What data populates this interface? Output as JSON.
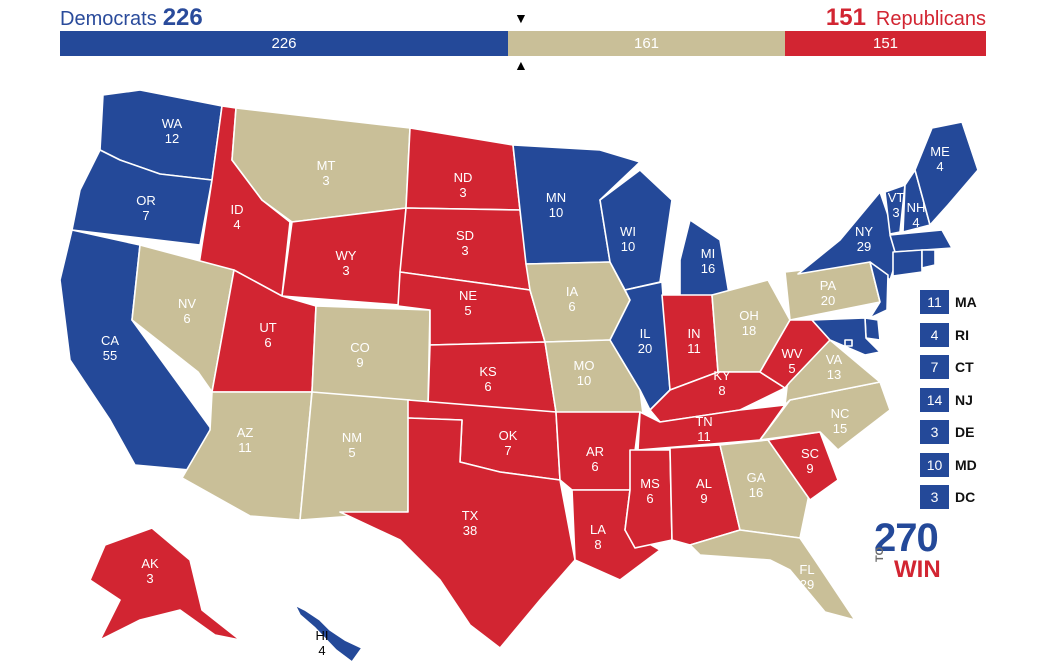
{
  "header": {
    "dem_name": "Democrats",
    "dem_total": "226",
    "rep_total": "151",
    "rep_name": "Republicans",
    "bar": {
      "dem": "226",
      "tossup": "161",
      "rep": "151"
    },
    "marker_down": "▼",
    "marker_up": "▲"
  },
  "colors": {
    "dem": "#244999",
    "rep": "#d22532",
    "tossup": "#c9bf98"
  },
  "states": [
    {
      "id": "WA",
      "abbr": "WA",
      "votes": "12",
      "party": "D"
    },
    {
      "id": "OR",
      "abbr": "OR",
      "votes": "7",
      "party": "D"
    },
    {
      "id": "CA",
      "abbr": "CA",
      "votes": "55",
      "party": "D"
    },
    {
      "id": "ID",
      "abbr": "ID",
      "votes": "4",
      "party": "R"
    },
    {
      "id": "NV",
      "abbr": "NV",
      "votes": "6",
      "party": "T"
    },
    {
      "id": "MT",
      "abbr": "MT",
      "votes": "3",
      "party": "T"
    },
    {
      "id": "WY",
      "abbr": "WY",
      "votes": "3",
      "party": "R"
    },
    {
      "id": "UT",
      "abbr": "UT",
      "votes": "6",
      "party": "R"
    },
    {
      "id": "AZ",
      "abbr": "AZ",
      "votes": "11",
      "party": "T"
    },
    {
      "id": "CO",
      "abbr": "CO",
      "votes": "9",
      "party": "T"
    },
    {
      "id": "NM",
      "abbr": "NM",
      "votes": "5",
      "party": "T"
    },
    {
      "id": "ND",
      "abbr": "ND",
      "votes": "3",
      "party": "R"
    },
    {
      "id": "SD",
      "abbr": "SD",
      "votes": "3",
      "party": "R"
    },
    {
      "id": "NE",
      "abbr": "NE",
      "votes": "5",
      "party": "R"
    },
    {
      "id": "KS",
      "abbr": "KS",
      "votes": "6",
      "party": "R"
    },
    {
      "id": "OK",
      "abbr": "OK",
      "votes": "7",
      "party": "R"
    },
    {
      "id": "TX",
      "abbr": "TX",
      "votes": "38",
      "party": "R"
    },
    {
      "id": "MN",
      "abbr": "MN",
      "votes": "10",
      "party": "D"
    },
    {
      "id": "IA",
      "abbr": "IA",
      "votes": "6",
      "party": "T"
    },
    {
      "id": "MO",
      "abbr": "MO",
      "votes": "10",
      "party": "T"
    },
    {
      "id": "AR",
      "abbr": "AR",
      "votes": "6",
      "party": "R"
    },
    {
      "id": "LA",
      "abbr": "LA",
      "votes": "8",
      "party": "R"
    },
    {
      "id": "WI",
      "abbr": "WI",
      "votes": "10",
      "party": "D"
    },
    {
      "id": "IL",
      "abbr": "IL",
      "votes": "20",
      "party": "D"
    },
    {
      "id": "MI",
      "abbr": "MI",
      "votes": "16",
      "party": "D"
    },
    {
      "id": "IN",
      "abbr": "IN",
      "votes": "11",
      "party": "R"
    },
    {
      "id": "OH",
      "abbr": "OH",
      "votes": "18",
      "party": "T"
    },
    {
      "id": "KY",
      "abbr": "KY",
      "votes": "8",
      "party": "R"
    },
    {
      "id": "TN",
      "abbr": "TN",
      "votes": "11",
      "party": "R"
    },
    {
      "id": "MS",
      "abbr": "MS",
      "votes": "6",
      "party": "R"
    },
    {
      "id": "AL",
      "abbr": "AL",
      "votes": "9",
      "party": "R"
    },
    {
      "id": "GA",
      "abbr": "GA",
      "votes": "16",
      "party": "T"
    },
    {
      "id": "FL",
      "abbr": "FL",
      "votes": "29",
      "party": "T"
    },
    {
      "id": "SC",
      "abbr": "SC",
      "votes": "9",
      "party": "R"
    },
    {
      "id": "NC",
      "abbr": "NC",
      "votes": "15",
      "party": "T"
    },
    {
      "id": "VA",
      "abbr": "VA",
      "votes": "13",
      "party": "T"
    },
    {
      "id": "WV",
      "abbr": "WV",
      "votes": "5",
      "party": "R"
    },
    {
      "id": "PA",
      "abbr": "PA",
      "votes": "20",
      "party": "T"
    },
    {
      "id": "NY",
      "abbr": "NY",
      "votes": "29",
      "party": "D"
    },
    {
      "id": "VT",
      "abbr": "VT",
      "votes": "3",
      "party": "D"
    },
    {
      "id": "NH",
      "abbr": "NH",
      "votes": "4",
      "party": "D"
    },
    {
      "id": "ME",
      "abbr": "ME",
      "votes": "4",
      "party": "D"
    },
    {
      "id": "AK",
      "abbr": "AK",
      "votes": "3",
      "party": "R"
    },
    {
      "id": "HI",
      "abbr": "HI",
      "votes": "4",
      "party": "D"
    }
  ],
  "small_states": [
    {
      "abbr": "MA",
      "votes": "11"
    },
    {
      "abbr": "RI",
      "votes": "4"
    },
    {
      "abbr": "CT",
      "votes": "7"
    },
    {
      "abbr": "NJ",
      "votes": "14"
    },
    {
      "abbr": "DE",
      "votes": "3"
    },
    {
      "abbr": "MD",
      "votes": "10"
    },
    {
      "abbr": "DC",
      "votes": "3"
    }
  ],
  "logo": {
    "number": "270",
    "to": "TO",
    "win": "WIN"
  }
}
